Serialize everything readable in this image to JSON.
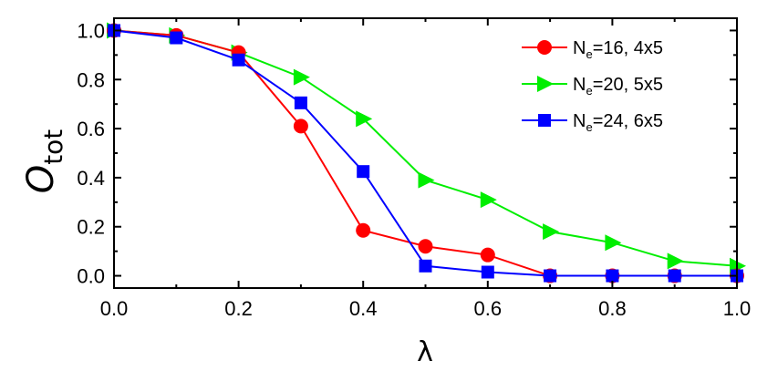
{
  "chart_data": {
    "type": "line",
    "xlabel": "λ",
    "ylabel": {
      "main": "O",
      "sub": "tot"
    },
    "xlim": [
      0.0,
      1.0
    ],
    "ylim": [
      -0.05,
      1.05
    ],
    "xticks": [
      0.0,
      0.2,
      0.4,
      0.6,
      0.8,
      1.0
    ],
    "xtick_labels": [
      "0.0",
      "0.2",
      "0.4",
      "0.6",
      "0.8",
      "1.0"
    ],
    "yticks": [
      0.0,
      0.2,
      0.4,
      0.6,
      0.8,
      1.0
    ],
    "ytick_labels": [
      "0.0",
      "0.2",
      "0.4",
      "0.6",
      "0.8",
      "1.0"
    ],
    "grid": false,
    "legend_position": "top-right",
    "series": [
      {
        "name_parts": {
          "pre": "N",
          "sub": "e",
          "post": "=16, 4x5"
        },
        "color": "#ff0000",
        "marker": "circle",
        "x": [
          0.0,
          0.1,
          0.2,
          0.3,
          0.4,
          0.5,
          0.6,
          0.7,
          0.8,
          0.9,
          1.0
        ],
        "y": [
          1.0,
          0.98,
          0.91,
          0.61,
          0.185,
          0.12,
          0.085,
          0.0,
          0.0,
          0.0,
          0.0
        ]
      },
      {
        "name_parts": {
          "pre": "N",
          "sub": "e",
          "post": "=20, 5x5"
        },
        "color": "#00ee00",
        "marker": "triangle-right",
        "x": [
          0.0,
          0.1,
          0.2,
          0.3,
          0.4,
          0.5,
          0.6,
          0.7,
          0.8,
          0.9,
          1.0
        ],
        "y": [
          1.0,
          0.98,
          0.91,
          0.81,
          0.64,
          0.39,
          0.31,
          0.18,
          0.135,
          0.06,
          0.04
        ]
      },
      {
        "name_parts": {
          "pre": "N",
          "sub": "e",
          "post": "=24, 6x5"
        },
        "color": "#0000ff",
        "marker": "square",
        "x": [
          0.0,
          0.1,
          0.2,
          0.3,
          0.4,
          0.5,
          0.6,
          0.7,
          0.8,
          0.9,
          1.0
        ],
        "y": [
          1.0,
          0.97,
          0.88,
          0.705,
          0.425,
          0.04,
          0.015,
          0.0,
          0.0,
          0.0,
          0.0
        ]
      }
    ]
  }
}
